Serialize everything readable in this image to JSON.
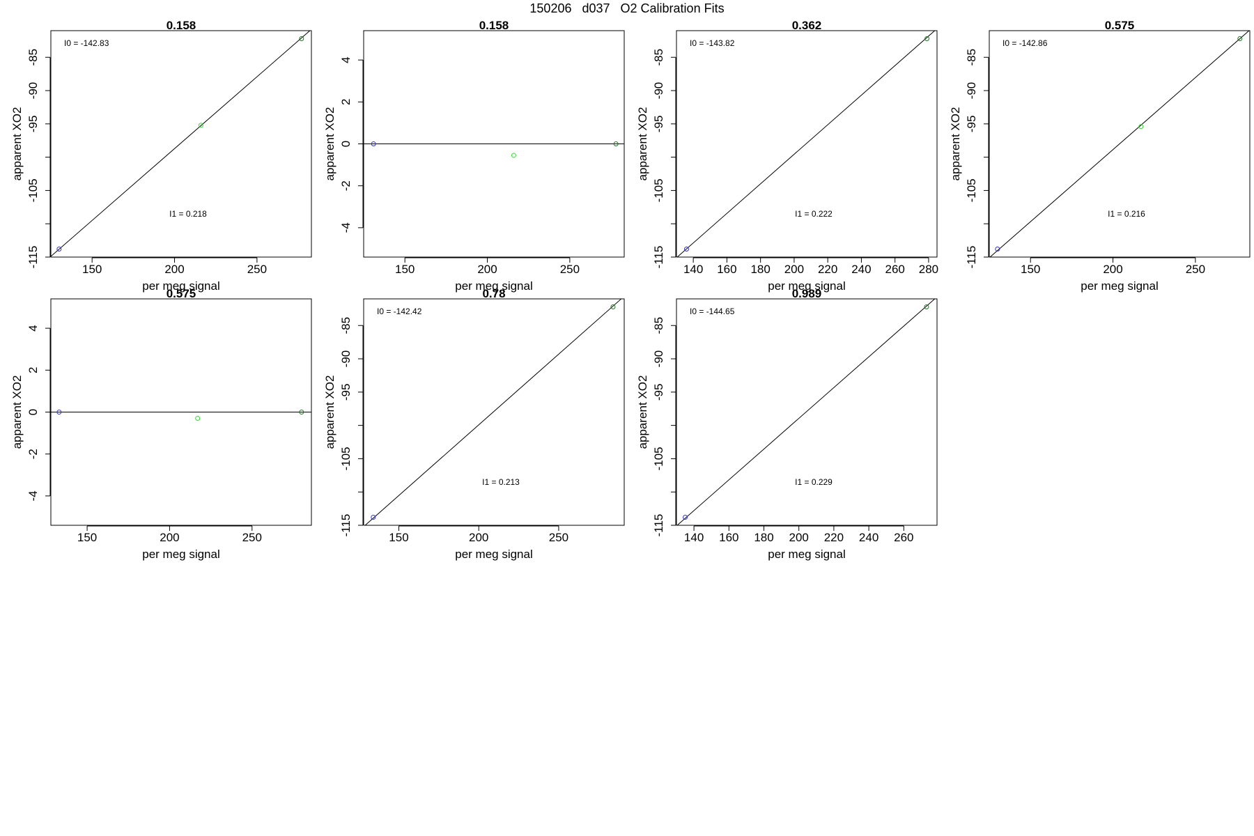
{
  "figure": {
    "title": "150206   d037   O2 Calibration Fits",
    "point_colors": {
      "low": "#3333cc",
      "mid": "#33dd33",
      "high": "#227722"
    },
    "line_color": "#000000"
  },
  "chart_data": [
    {
      "type": "scatter",
      "title": "0.158",
      "xlabel": "per meg signal",
      "ylabel": "apparent XO2",
      "xlim": [
        125,
        283
      ],
      "ylim": [
        -115,
        -81
      ],
      "xticks": [
        150,
        200,
        250
      ],
      "yticks": [
        -115,
        -110,
        -105,
        -100,
        -95,
        -90,
        -85
      ],
      "ytick_labels": [
        "-115",
        "",
        "-105",
        "",
        "-95",
        "-90",
        "-85"
      ],
      "points": [
        {
          "x": 130,
          "y": -113.8,
          "color": "blue"
        },
        {
          "x": 216,
          "y": -95.2,
          "color": "lightgreen"
        },
        {
          "x": 277,
          "y": -82.2,
          "color": "darkgreen"
        }
      ],
      "fit_line": {
        "x": [
          125,
          283
        ],
        "y": [
          -114.9,
          -80.8
        ]
      },
      "annotations": [
        {
          "label": "I0 =",
          "value": "-142.83",
          "pos": "top-left"
        },
        {
          "label": "I1 =",
          "value": "0.218",
          "pos": "center-bottom"
        }
      ]
    },
    {
      "type": "scatter",
      "title": "0.158",
      "xlabel": "per meg signal",
      "ylabel": "apparent XO2",
      "xlim": [
        125,
        283
      ],
      "ylim": [
        -5.4,
        5.4
      ],
      "xticks": [
        150,
        200,
        250
      ],
      "yticks": [
        -4,
        -2,
        0,
        2,
        4
      ],
      "ytick_labels": [
        "-4",
        "-2",
        "0",
        "2",
        "4"
      ],
      "points": [
        {
          "x": 131,
          "y": 0,
          "color": "blue"
        },
        {
          "x": 216,
          "y": -0.55,
          "color": "lightgreen"
        },
        {
          "x": 278,
          "y": 0,
          "color": "darkgreen"
        }
      ],
      "fit_line": {
        "x": [
          125,
          283
        ],
        "y": [
          0,
          0
        ]
      },
      "annotations": []
    },
    {
      "type": "scatter",
      "title": "0.362",
      "xlabel": "per meg signal",
      "ylabel": "apparent XO2",
      "xlim": [
        130,
        285
      ],
      "ylim": [
        -115,
        -81
      ],
      "xticks": [
        140,
        160,
        180,
        200,
        220,
        240,
        260,
        280
      ],
      "yticks": [
        -115,
        -110,
        -105,
        -100,
        -95,
        -90,
        -85
      ],
      "ytick_labels": [
        "-115",
        "",
        "-105",
        "",
        "-95",
        "-90",
        "-85"
      ],
      "points": [
        {
          "x": 136,
          "y": -113.8,
          "color": "blue"
        },
        {
          "x": 279,
          "y": -82.2,
          "color": "darkgreen"
        }
      ],
      "fit_line": {
        "x": [
          130,
          285
        ],
        "y": [
          -115.1,
          -80.7
        ]
      },
      "annotations": [
        {
          "label": "I0 =",
          "value": "-143.82",
          "pos": "top-left"
        },
        {
          "label": "I1 =",
          "value": "0.222",
          "pos": "center-bottom"
        }
      ]
    },
    {
      "type": "scatter",
      "title": "0.575",
      "xlabel": "per meg signal",
      "ylabel": "apparent XO2",
      "xlim": [
        125,
        283
      ],
      "ylim": [
        -115,
        -81
      ],
      "xticks": [
        150,
        200,
        250
      ],
      "yticks": [
        -115,
        -110,
        -105,
        -100,
        -95,
        -90,
        -85
      ],
      "ytick_labels": [
        "-115",
        "",
        "-105",
        "",
        "-95",
        "-90",
        "-85"
      ],
      "points": [
        {
          "x": 130,
          "y": -113.8,
          "color": "blue"
        },
        {
          "x": 217,
          "y": -95.4,
          "color": "lightgreen"
        },
        {
          "x": 277,
          "y": -82.2,
          "color": "darkgreen"
        }
      ],
      "fit_line": {
        "x": [
          125,
          283
        ],
        "y": [
          -115.1,
          -80.9
        ]
      },
      "annotations": [
        {
          "label": "I0 =",
          "value": "-142.86",
          "pos": "top-left"
        },
        {
          "label": "I1 =",
          "value": "0.216",
          "pos": "center-bottom"
        }
      ]
    },
    {
      "type": "scatter",
      "title": "0.575",
      "xlabel": "per meg signal",
      "ylabel": "apparent XO2",
      "xlim": [
        128,
        286
      ],
      "ylim": [
        -5.4,
        5.4
      ],
      "xticks": [
        150,
        200,
        250
      ],
      "yticks": [
        -4,
        -2,
        0,
        2,
        4
      ],
      "ytick_labels": [
        "-4",
        "-2",
        "0",
        "2",
        "4"
      ],
      "points": [
        {
          "x": 133,
          "y": 0,
          "color": "blue"
        },
        {
          "x": 217,
          "y": -0.3,
          "color": "lightgreen"
        },
        {
          "x": 280,
          "y": 0,
          "color": "darkgreen"
        }
      ],
      "fit_line": {
        "x": [
          128,
          286
        ],
        "y": [
          0,
          0
        ]
      },
      "annotations": []
    },
    {
      "type": "scatter",
      "title": "0.78",
      "xlabel": "per meg signal",
      "ylabel": "apparent XO2",
      "xlim": [
        128,
        291
      ],
      "ylim": [
        -115,
        -81
      ],
      "xticks": [
        150,
        200,
        250
      ],
      "yticks": [
        -115,
        -110,
        -105,
        -100,
        -95,
        -90,
        -85
      ],
      "ytick_labels": [
        "-115",
        "",
        "-105",
        "",
        "-95",
        "-90",
        "-85"
      ],
      "points": [
        {
          "x": 134,
          "y": -113.8,
          "color": "blue"
        },
        {
          "x": 284,
          "y": -82.2,
          "color": "darkgreen"
        }
      ],
      "fit_line": {
        "x": [
          128,
          291
        ],
        "y": [
          -115.2,
          -80.6
        ]
      },
      "annotations": [
        {
          "label": "I0 =",
          "value": "-142.42",
          "pos": "top-left"
        },
        {
          "label": "I1 =",
          "value": "0.213",
          "pos": "center-bottom"
        }
      ]
    },
    {
      "type": "scatter",
      "title": "0.989",
      "xlabel": "per meg signal",
      "ylabel": "apparent XO2",
      "xlim": [
        130,
        279
      ],
      "ylim": [
        -115,
        -81
      ],
      "xticks": [
        140,
        160,
        180,
        200,
        220,
        240,
        260
      ],
      "yticks": [
        -115,
        -110,
        -105,
        -100,
        -95,
        -90,
        -85
      ],
      "ytick_labels": [
        "-115",
        "",
        "-105",
        "",
        "-95",
        "-90",
        "-85"
      ],
      "points": [
        {
          "x": 135,
          "y": -113.8,
          "color": "blue"
        },
        {
          "x": 273,
          "y": -82.2,
          "color": "darkgreen"
        }
      ],
      "fit_line": {
        "x": [
          130,
          279
        ],
        "y": [
          -115.1,
          -80.7
        ]
      },
      "annotations": [
        {
          "label": "I0 =",
          "value": "-144.65",
          "pos": "top-left"
        },
        {
          "label": "I1 =",
          "value": "0.229",
          "pos": "center-bottom"
        }
      ]
    }
  ]
}
